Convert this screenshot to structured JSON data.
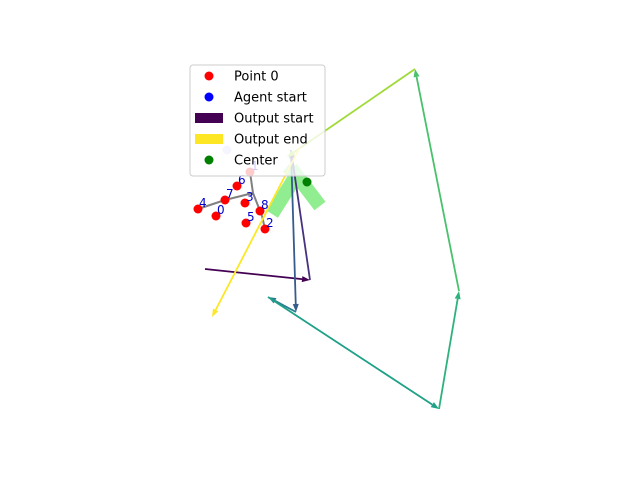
{
  "chart_data": {
    "type": "scatter",
    "title": "",
    "xlabel": "",
    "ylabel": "",
    "axes_visible": false,
    "grid": false,
    "xlim": [
      0,
      640
    ],
    "ylim": [
      480,
      0
    ],
    "legend": {
      "placement": "top-left",
      "entries": [
        {
          "label": "Point 0",
          "marker": "circle",
          "color": "#ff0000"
        },
        {
          "label": "Agent start",
          "marker": "circle",
          "color": "#0000ff"
        },
        {
          "label": "Output start",
          "marker": "rect",
          "color": "#440154"
        },
        {
          "label": "Output end",
          "marker": "rect",
          "color": "#fde725"
        },
        {
          "label": "Center",
          "marker": "circle",
          "color": "#008000"
        }
      ]
    },
    "points": [
      {
        "label": "0",
        "x": 216,
        "y": 216
      },
      {
        "label": "1",
        "x": 250,
        "y": 172
      },
      {
        "label": "2",
        "x": 265,
        "y": 229
      },
      {
        "label": "3",
        "x": 245,
        "y": 203
      },
      {
        "label": "4",
        "x": 198,
        "y": 209
      },
      {
        "label": "5",
        "x": 246,
        "y": 223
      },
      {
        "label": "6",
        "x": 237,
        "y": 186
      },
      {
        "label": "7",
        "x": 225,
        "y": 200
      },
      {
        "label": "8",
        "x": 260,
        "y": 211
      }
    ],
    "point_color": "#ff0000",
    "point_links": [
      {
        "from": [
          198,
          209
        ],
        "to": [
          225,
          200
        ]
      },
      {
        "from": [
          225,
          200
        ],
        "to": [
          253,
          193
        ]
      },
      {
        "from": [
          250,
          172
        ],
        "to": [
          253,
          193
        ]
      },
      {
        "from": [
          253,
          193
        ],
        "to": [
          262,
          216
        ]
      },
      {
        "from": [
          262,
          216
        ],
        "to": [
          265,
          229
        ]
      }
    ],
    "link_color": "#808080",
    "agent_start": {
      "x": 227,
      "y": 150,
      "color": "#0000ff",
      "alpha": 0.2
    },
    "center": {
      "x": 307,
      "y": 182,
      "color": "#008000"
    },
    "highlight_bars": [
      {
        "from": [
          291,
          168
        ],
        "to": [
          320,
          206
        ],
        "color": "#90ee90",
        "width": 14
      },
      {
        "from": [
          296,
          176
        ],
        "to": [
          272,
          214
        ],
        "color": "#90ee90",
        "width": 14
      },
      {
        "from": [
          286,
          168
        ],
        "to": [
          296,
          176
        ],
        "color": "#90ee90",
        "width": 10
      }
    ],
    "arrows": [
      {
        "from": [
          205,
          269
        ],
        "to": [
          310,
          280
        ],
        "color": "#440154"
      },
      {
        "from": [
          310,
          280
        ],
        "to": [
          291,
          150
        ],
        "color": "#46327e"
      },
      {
        "from": [
          291,
          150
        ],
        "to": [
          296,
          312
        ],
        "color": "#365c8d"
      },
      {
        "from": [
          296,
          312
        ],
        "to": [
          268,
          297
        ],
        "color": "#277f8e"
      },
      {
        "from": [
          268,
          297
        ],
        "to": [
          439,
          409
        ],
        "color": "#1fa187"
      },
      {
        "from": [
          439,
          409
        ],
        "to": [
          459,
          291
        ],
        "color": "#2db27d"
      },
      {
        "from": [
          459,
          291
        ],
        "to": [
          415,
          69
        ],
        "color": "#4ac16d"
      },
      {
        "from": [
          415,
          69
        ],
        "to": [
          287,
          157
        ],
        "color": "#a0da39"
      },
      {
        "from": [
          300,
          147
        ],
        "to": [
          212,
          317
        ],
        "color": "#fde725"
      }
    ]
  }
}
